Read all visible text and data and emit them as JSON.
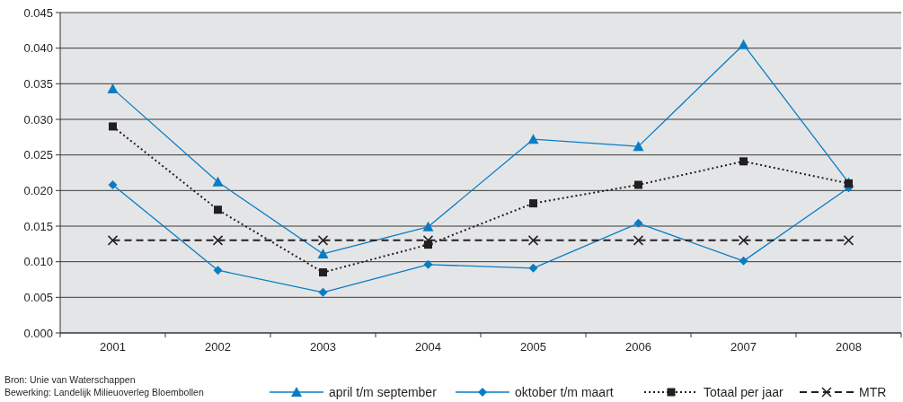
{
  "chart_data": {
    "type": "line",
    "categories": [
      "2001",
      "2002",
      "2003",
      "2004",
      "2005",
      "2006",
      "2007",
      "2008"
    ],
    "series": [
      {
        "name": "april t/m september",
        "color": "#0a7cc4",
        "marker": "triangle",
        "line_style": "solid",
        "values": [
          0.0343,
          0.0212,
          0.0111,
          0.0149,
          0.0272,
          0.0262,
          0.0405,
          0.0211
        ]
      },
      {
        "name": "oktober t/m maart",
        "color": "#0a7cc4",
        "marker": "diamond",
        "line_style": "solid",
        "values": [
          0.0208,
          0.0088,
          0.0057,
          0.0096,
          0.0091,
          0.0154,
          0.0101,
          0.0204
        ]
      },
      {
        "name": "Totaal per jaar",
        "color": "#231f20",
        "marker": "square",
        "line_style": "dotted",
        "values": [
          0.029,
          0.0173,
          0.0085,
          0.0124,
          0.0182,
          0.0208,
          0.0241,
          0.021
        ]
      },
      {
        "name": "MTR",
        "color": "#231f20",
        "marker": "cross",
        "line_style": "dashed",
        "values": [
          0.013,
          0.013,
          0.013,
          0.013,
          0.013,
          0.013,
          0.013,
          0.013
        ]
      }
    ],
    "ylim": [
      0,
      0.045
    ],
    "yticks": [
      {
        "value": 0,
        "label": "0.000"
      },
      {
        "value": 0.005,
        "label": "0.005"
      },
      {
        "value": 0.01,
        "label": "0.010"
      },
      {
        "value": 0.015,
        "label": "0.015"
      },
      {
        "value": 0.02,
        "label": "0.020"
      },
      {
        "value": 0.025,
        "label": "0.025"
      },
      {
        "value": 0.03,
        "label": "0.030"
      },
      {
        "value": 0.035,
        "label": "0.035"
      },
      {
        "value": 0.04,
        "label": "0.040"
      },
      {
        "value": 0.045,
        "label": "0.045"
      }
    ],
    "grid": "y",
    "legend": "bottom",
    "annotations": [
      "Bron: Unie van Waterschappen",
      "Bewerking: Landelijk Milieuoverleg Bloembollen"
    ]
  }
}
